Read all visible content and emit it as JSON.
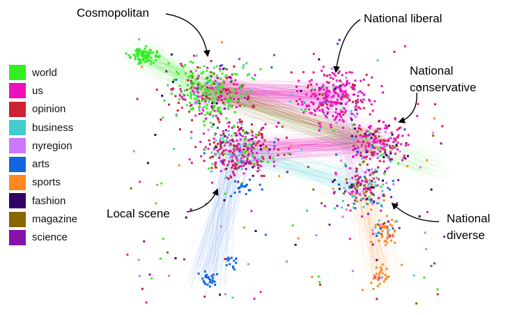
{
  "legend": {
    "items": [
      {
        "label": "world",
        "color": "#33ee22"
      },
      {
        "label": "us",
        "color": "#ee11bb"
      },
      {
        "label": "opinion",
        "color": "#cc2233"
      },
      {
        "label": "business",
        "color": "#44cccc"
      },
      {
        "label": "nyregion",
        "color": "#cc77ff"
      },
      {
        "label": "arts",
        "color": "#1166dd"
      },
      {
        "label": "sports",
        "color": "#ff8822"
      },
      {
        "label": "fashion",
        "color": "#330066"
      },
      {
        "label": "magazine",
        "color": "#886600"
      },
      {
        "label": "science",
        "color": "#8811aa"
      }
    ]
  },
  "annotations": {
    "cosmopolitan": "Cosmopolitan",
    "national_liberal": "National liberal",
    "national_conservative_line1": "National",
    "national_conservative_line2": "conservative",
    "local_scene": "Local scene",
    "national_diverse_line1": "National",
    "national_diverse_line2": "diverse"
  }
}
